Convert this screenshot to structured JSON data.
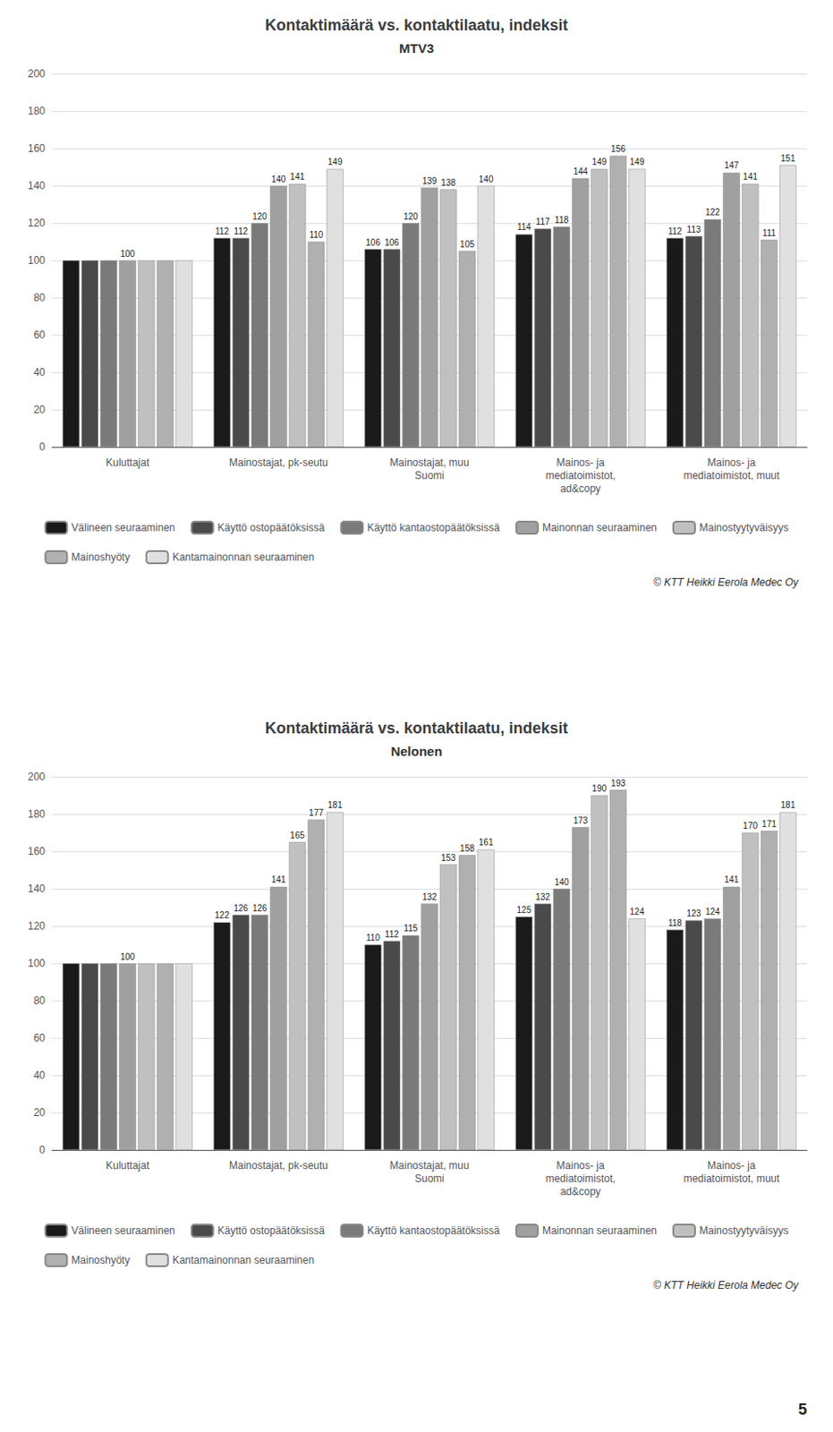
{
  "chart_data": [
    {
      "type": "bar",
      "title": "Kontaktimäärä vs. kontaktilaatu, indeksit",
      "subtitle": "MTV3",
      "categories": [
        "Kuluttajat",
        "Mainostajat, pk-seutu",
        "Mainostajat, muu\nSuomi",
        "Mainos- ja\nmediatoimistot,\nad&copy",
        "Mainos- ja\nmediatoimistot, muut"
      ],
      "series": [
        {
          "name": "Välineen seuraaminen",
          "color": "#1a1a1a",
          "values": [
            100,
            112,
            106,
            114,
            112
          ],
          "value_labels": [
            null,
            "112",
            "106",
            "114",
            "112"
          ]
        },
        {
          "name": "Käyttö ostopäätöksissä",
          "color": "#4a4a4a",
          "values": [
            100,
            112,
            106,
            117,
            113
          ],
          "value_labels": [
            null,
            "112",
            "106",
            "117",
            "113"
          ]
        },
        {
          "name": "Käyttö kantaostopäätöksissä",
          "color": "#7a7a7a",
          "values": [
            100,
            120,
            120,
            118,
            122
          ],
          "value_labels": [
            null,
            "120",
            "120",
            "118",
            "122"
          ]
        },
        {
          "name": "Mainonnan seuraaminen",
          "color": "#a0a0a0",
          "values": [
            100,
            140,
            139,
            144,
            147
          ],
          "value_labels": [
            "100",
            "140",
            "139",
            "144",
            "147"
          ]
        },
        {
          "name": "Mainostyytyväisyys",
          "color": "#c0c0c0",
          "values": [
            100,
            141,
            138,
            149,
            141
          ],
          "value_labels": [
            null,
            "141",
            "138",
            "149",
            "141"
          ]
        },
        {
          "name": "Mainoshyöty",
          "color": "#b0b0b0",
          "values": [
            100,
            110,
            105,
            156,
            111
          ],
          "value_labels": [
            null,
            "110",
            "105",
            "156",
            "111"
          ]
        },
        {
          "name": "Kantamainonnan seuraaminen",
          "color": "#e0e0e0",
          "values": [
            100,
            149,
            140,
            149,
            151
          ],
          "value_labels": [
            null,
            "149",
            "140",
            "149",
            "151"
          ]
        }
      ],
      "ylim": [
        0,
        200
      ],
      "yticks": [
        0,
        20,
        40,
        60,
        80,
        100,
        120,
        140,
        160,
        180,
        200
      ],
      "grid": true,
      "legend": "bottom",
      "data_labels": true,
      "annotations": [
        "© KTT Heikki Eerola Medec Oy"
      ]
    },
    {
      "type": "bar",
      "title": "Kontaktimäärä vs. kontaktilaatu, indeksit",
      "subtitle": "Nelonen",
      "categories": [
        "Kuluttajat",
        "Mainostajat, pk-seutu",
        "Mainostajat, muu\nSuomi",
        "Mainos- ja\nmediatoimistot,\nad&copy",
        "Mainos- ja\nmediatoimistot, muut"
      ],
      "series": [
        {
          "name": "Välineen seuraaminen",
          "color": "#1a1a1a",
          "values": [
            100,
            122,
            110,
            125,
            118
          ],
          "value_labels": [
            null,
            "122",
            "110",
            "125",
            "118"
          ]
        },
        {
          "name": "Käyttö ostopäätöksissä",
          "color": "#4a4a4a",
          "values": [
            100,
            126,
            112,
            132,
            123
          ],
          "value_labels": [
            null,
            "126",
            "112",
            "132",
            "123"
          ]
        },
        {
          "name": "Käyttö kantaostopäätöksissä",
          "color": "#7a7a7a",
          "values": [
            100,
            126,
            115,
            140,
            124
          ],
          "value_labels": [
            null,
            "126",
            "115",
            "140",
            "124"
          ]
        },
        {
          "name": "Mainonnan seuraaminen",
          "color": "#a0a0a0",
          "values": [
            100,
            141,
            132,
            173,
            141
          ],
          "value_labels": [
            "100",
            "141",
            "132",
            "173",
            "141"
          ]
        },
        {
          "name": "Mainostyytyväisyys",
          "color": "#c0c0c0",
          "values": [
            100,
            165,
            153,
            190,
            170
          ],
          "value_labels": [
            null,
            "165",
            "153",
            "190",
            "170"
          ]
        },
        {
          "name": "Mainoshyöty",
          "color": "#b0b0b0",
          "values": [
            100,
            177,
            158,
            193,
            171
          ],
          "value_labels": [
            null,
            "177",
            "158",
            "193",
            "171"
          ]
        },
        {
          "name": "Kantamainonnan seuraaminen",
          "color": "#e0e0e0",
          "values": [
            100,
            181,
            161,
            124,
            181
          ],
          "value_labels": [
            null,
            "181",
            "161",
            "124",
            "181"
          ]
        }
      ],
      "ylim": [
        0,
        200
      ],
      "yticks": [
        0,
        20,
        40,
        60,
        80,
        100,
        120,
        140,
        160,
        180,
        200
      ],
      "grid": true,
      "legend": "bottom",
      "data_labels": true,
      "annotations": [
        "© KTT Heikki Eerola Medec Oy",
        "5"
      ]
    }
  ]
}
